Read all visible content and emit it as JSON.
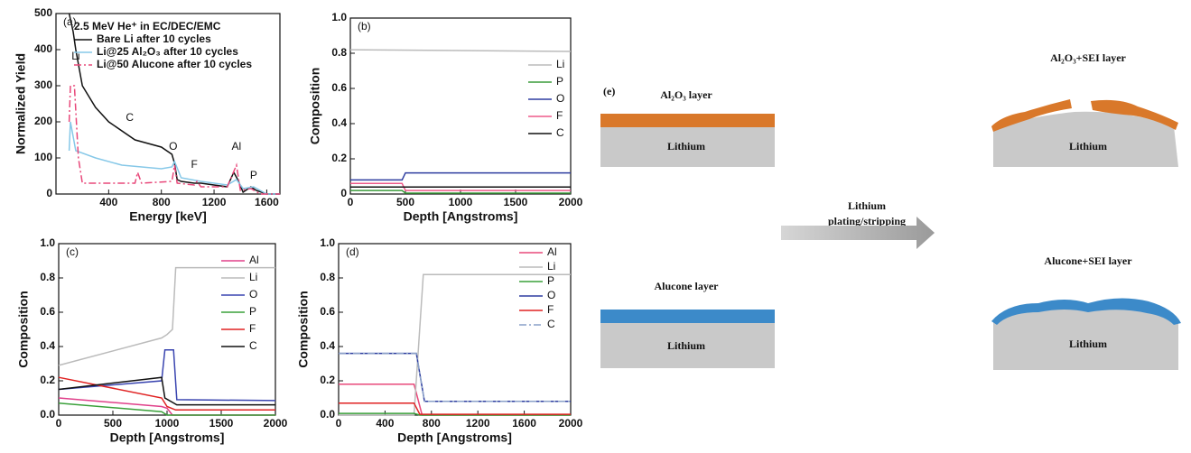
{
  "chart_data": [
    {
      "type": "line",
      "panel_label": "(a)",
      "title": "2.5 MeV He⁺ in EC/DEC/EMC",
      "x_label": "Energy [keV]",
      "y_label": "Normalized Yield",
      "xlim": [
        0,
        1700
      ],
      "ylim": [
        0,
        500
      ],
      "xticks": [
        400,
        800,
        1200,
        1600
      ],
      "yticks": [
        0,
        100,
        200,
        300,
        400,
        500
      ],
      "annotations": [
        "Li",
        "C",
        "O",
        "F",
        "Al",
        "P"
      ],
      "series": [
        {
          "name": "Bare Li after 10 cycles",
          "color": "#111111",
          "x": [
            100,
            130,
            150,
            200,
            300,
            400,
            600,
            800,
            880,
            900,
            920,
            950,
            1050,
            1100,
            1300,
            1350,
            1380,
            1420,
            1480,
            1520,
            1600,
            1700
          ],
          "values": [
            500,
            450,
            400,
            300,
            240,
            200,
            150,
            130,
            110,
            85,
            40,
            35,
            30,
            30,
            20,
            60,
            40,
            5,
            20,
            10,
            0,
            0
          ]
        },
        {
          "name": "Li@25 Al₂O₃ after 10 cycles",
          "color": "#86c8e8",
          "x": [
            100,
            110,
            150,
            300,
            500,
            800,
            880,
            900,
            950,
            1100,
            1300,
            1370,
            1420,
            1500,
            1600,
            1700
          ],
          "values": [
            120,
            200,
            120,
            100,
            80,
            70,
            75,
            90,
            45,
            35,
            25,
            40,
            15,
            20,
            0,
            0
          ]
        },
        {
          "name": "Li@50 Alucone after 10 cycles",
          "color": "#e8487a",
          "dash": "dash-dot",
          "x": [
            100,
            110,
            140,
            170,
            200,
            600,
            620,
            650,
            880,
            900,
            920,
            1050,
            1070,
            1100,
            1300,
            1370,
            1400,
            1480,
            1550,
            1700
          ],
          "values": [
            200,
            300,
            300,
            100,
            30,
            30,
            60,
            30,
            35,
            80,
            30,
            25,
            35,
            20,
            20,
            80,
            10,
            15,
            0,
            0
          ]
        }
      ]
    },
    {
      "type": "line",
      "panel_label": "(b)",
      "x_label": "Depth [Angstroms]",
      "y_label": "Composition",
      "xlim": [
        0,
        2000
      ],
      "ylim": [
        0,
        1
      ],
      "xticks": [
        0,
        500,
        1000,
        1500,
        2000
      ],
      "yticks": [
        0,
        0.2,
        0.4,
        0.6,
        0.8,
        {
          "value": 1,
          "label": "1.0"
        }
      ],
      "series": [
        {
          "name": "Li",
          "color": "#bbbbbb",
          "x": [
            0,
            2000
          ],
          "values": [
            0.82,
            0.81
          ]
        },
        {
          "name": "P",
          "color": "#3a9b3a",
          "x": [
            0,
            470,
            500,
            2000
          ],
          "values": [
            0.02,
            0.02,
            0.005,
            0.005
          ]
        },
        {
          "name": "O",
          "color": "#2e3da0",
          "x": [
            0,
            470,
            500,
            2000
          ],
          "values": [
            0.08,
            0.08,
            0.12,
            0.12
          ]
        },
        {
          "name": "F",
          "color": "#ee5a8a",
          "x": [
            0,
            470,
            500,
            2000
          ],
          "values": [
            0.06,
            0.06,
            0.02,
            0.02
          ]
        },
        {
          "name": "C",
          "color": "#111111",
          "x": [
            0,
            2000
          ],
          "values": [
            0.04,
            0.04
          ]
        }
      ]
    },
    {
      "type": "line",
      "panel_label": "(c)",
      "x_label": "Depth [Angstroms]",
      "y_label": "Composition",
      "xlim": [
        0,
        2000
      ],
      "ylim": [
        0,
        1
      ],
      "xticks": [
        0,
        500,
        1000,
        1500,
        2000
      ],
      "yticks": [
        {
          "value": 0,
          "label": "0.0"
        },
        0.2,
        0.4,
        0.6,
        0.8,
        {
          "value": 1,
          "label": "1.0"
        }
      ],
      "series": [
        {
          "name": "Al",
          "color": "#e0408a",
          "x": [
            0,
            950,
            1000,
            1050,
            2000
          ],
          "values": [
            0.1,
            0.05,
            0.04,
            0.0,
            0.0
          ]
        },
        {
          "name": "Li",
          "color": "#bbbbbb",
          "x": [
            0,
            950,
            1000,
            1050,
            1080,
            2000
          ],
          "values": [
            0.29,
            0.45,
            0.47,
            0.5,
            0.86,
            0.86
          ]
        },
        {
          "name": "O",
          "color": "#3a45b0",
          "x": [
            0,
            950,
            980,
            1060,
            1090,
            2000
          ],
          "values": [
            0.15,
            0.2,
            0.38,
            0.38,
            0.09,
            0.085
          ]
        },
        {
          "name": "P",
          "color": "#3aa03a",
          "x": [
            0,
            950,
            1000,
            2000
          ],
          "values": [
            0.07,
            0.02,
            0.0,
            0.0
          ]
        },
        {
          "name": "F",
          "color": "#e02222",
          "x": [
            0,
            950,
            1000,
            1080,
            2000
          ],
          "values": [
            0.22,
            0.1,
            0.05,
            0.03,
            0.03
          ]
        },
        {
          "name": "C",
          "color": "#111111",
          "x": [
            0,
            950,
            980,
            1090,
            2000
          ],
          "values": [
            0.15,
            0.22,
            0.1,
            0.06,
            0.06
          ]
        }
      ]
    },
    {
      "type": "line",
      "panel_label": "(d)",
      "x_label": "Depth [Angstroms]",
      "y_label": "Composition",
      "xlim": [
        0,
        2000
      ],
      "ylim": [
        0,
        1
      ],
      "xticks": [
        0,
        400,
        800,
        1200,
        1600,
        2000
      ],
      "yticks": [
        {
          "value": 0,
          "label": "0.0"
        },
        0.2,
        0.4,
        0.6,
        0.8,
        {
          "value": 1,
          "label": "1.0"
        }
      ],
      "series": [
        {
          "name": "Al",
          "color": "#e8487a",
          "x": [
            0,
            650,
            720,
            2000
          ],
          "values": [
            0.18,
            0.18,
            0.0,
            0.0
          ]
        },
        {
          "name": "Li",
          "color": "#bbbbbb",
          "x": [
            0,
            650,
            730,
            2000
          ],
          "values": [
            0.0,
            0.0,
            0.82,
            0.82
          ]
        },
        {
          "name": "P",
          "color": "#3aa03a",
          "x": [
            0,
            650,
            700,
            2000
          ],
          "values": [
            0.01,
            0.01,
            0.0,
            0.0
          ]
        },
        {
          "name": "O",
          "color": "#2e3da0",
          "x": [
            0,
            670,
            740,
            2000
          ],
          "values": [
            0.36,
            0.36,
            0.08,
            0.08
          ]
        },
        {
          "name": "F",
          "color": "#e02222",
          "x": [
            0,
            650,
            700,
            2000
          ],
          "values": [
            0.07,
            0.07,
            0.005,
            0.005
          ]
        },
        {
          "name": "C",
          "color": "#8aa0c8",
          "dash": "dash-dot",
          "x": [
            0,
            670,
            740,
            2000
          ],
          "values": [
            0.36,
            0.36,
            0.08,
            0.08
          ]
        }
      ]
    }
  ],
  "diagram": {
    "panel_label": "(e)",
    "top_left_title": "Al₂O₃ layer",
    "top_left_base": "Lithium",
    "bottom_left_title": "Alucone layer",
    "bottom_left_base": "Lithium",
    "arrow_line1": "Lithium",
    "arrow_line2": "plating/stripping",
    "top_right_title": "Al₂O₃+SEI layer",
    "top_right_base": "Lithium",
    "bottom_right_title": "Alucone+SEI layer",
    "bottom_right_base": "Lithium"
  }
}
